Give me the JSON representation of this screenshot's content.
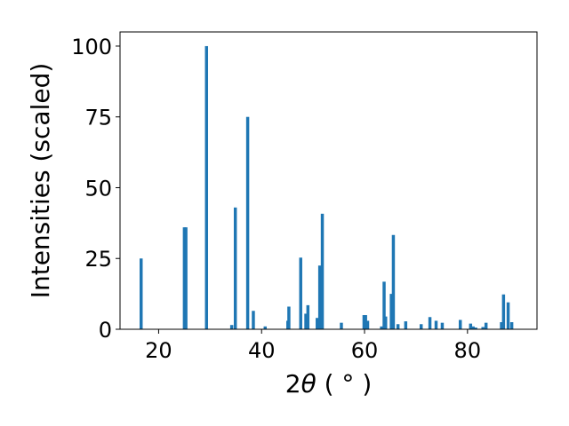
{
  "chart_data": {
    "type": "bar",
    "title": "",
    "xlabel_prefix": "2",
    "xlabel_symbol": "θ",
    "xlabel_unit": " ( ° )",
    "ylabel": "Intensities (scaled)",
    "xlim": [
      12.5,
      93.5
    ],
    "ylim": [
      0,
      105
    ],
    "xticks": [
      20,
      40,
      60,
      80
    ],
    "yticks": [
      0,
      25,
      50,
      75,
      100
    ],
    "grid": false,
    "bar_color": "#1f77b4",
    "bar_width": 0.6,
    "series": [
      {
        "x": [
          16.6,
          25.0,
          25.3,
          29.3,
          34.2,
          34.9,
          37.3,
          38.4,
          40.7,
          45.1,
          45.3,
          47.6,
          48.6,
          49.0,
          50.8,
          51.3,
          51.8,
          55.5,
          59.9,
          60.2,
          60.6,
          63.3,
          63.8,
          64.1,
          65.2,
          65.6,
          66.5,
          68.0,
          71.0,
          72.7,
          73.9,
          75.1,
          78.6,
          80.6,
          81.1,
          81.6,
          83.0,
          83.6,
          86.6,
          87.0,
          87.9,
          88.6
        ],
        "y": [
          25.0,
          36.0,
          36.0,
          100.0,
          1.5,
          43.0,
          75.0,
          6.5,
          1.0,
          3.0,
          8.0,
          25.3,
          5.5,
          8.5,
          4.0,
          22.5,
          40.8,
          2.3,
          5.0,
          5.0,
          3.0,
          1.0,
          16.8,
          4.5,
          12.5,
          33.3,
          1.8,
          2.8,
          1.8,
          4.3,
          3.0,
          2.3,
          3.3,
          2.0,
          1.0,
          0.6,
          0.8,
          2.3,
          2.5,
          12.3,
          9.5,
          2.5
        ]
      }
    ]
  }
}
